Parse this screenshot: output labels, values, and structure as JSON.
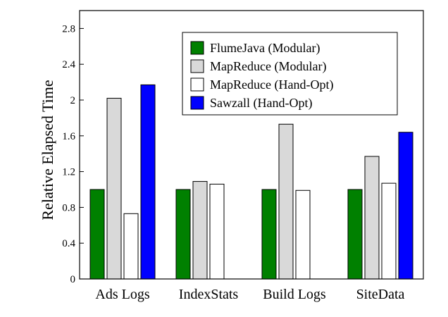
{
  "chart_data": {
    "type": "bar",
    "title": "",
    "xlabel": "",
    "ylabel": "Relative Elapsed Time",
    "ylim": [
      0,
      3.0
    ],
    "yticks": [
      0,
      0.4,
      0.8,
      1.2,
      1.6,
      2,
      2.4,
      2.8
    ],
    "yticklabels": [
      "0",
      "0.4",
      "0.8",
      "1.2",
      "1.6",
      "2",
      "2.4",
      "2.8"
    ],
    "grid": false,
    "legend_position": "top-right",
    "categories": [
      "Ads Logs",
      "IndexStats",
      "Build Logs",
      "SiteData"
    ],
    "series": [
      {
        "name": "FlumeJava (Modular)",
        "color": "#008000",
        "values": [
          1.0,
          1.0,
          1.0,
          1.0
        ]
      },
      {
        "name": "MapReduce (Modular)",
        "color": "#d9d9d9",
        "values": [
          2.02,
          1.09,
          1.73,
          1.37
        ]
      },
      {
        "name": "MapReduce (Hand-Opt)",
        "color": "#ffffff",
        "values": [
          0.73,
          1.06,
          0.99,
          1.07
        ]
      },
      {
        "name": "Sawzall (Hand-Opt)",
        "color": "#0000ff",
        "values": [
          2.17,
          null,
          null,
          1.64
        ]
      }
    ]
  }
}
